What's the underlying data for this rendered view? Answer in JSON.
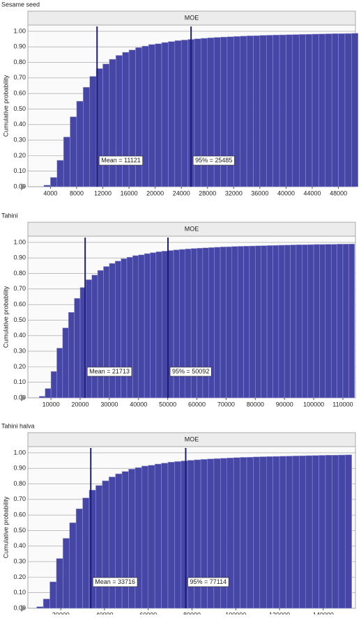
{
  "chart_data": [
    {
      "type": "histogram",
      "heading": "Sesame seed",
      "title": "MOE",
      "ylabel": "Cumulative probability",
      "color": "#4646a6",
      "line_color": "#1c1c78",
      "bins": [
        3000,
        4000,
        5000,
        6000,
        7000,
        8000,
        9000,
        10000,
        11000,
        12000,
        13000,
        14000,
        15000,
        16000,
        17000,
        18000,
        19000,
        20000,
        21000,
        22000,
        23000,
        24000,
        25000,
        26000,
        27000,
        28000,
        29000,
        30000,
        31000,
        32000,
        33000,
        34000,
        35000,
        36000,
        37000,
        38000,
        39000,
        40000,
        41000,
        42000,
        43000,
        44000,
        45000,
        46000,
        47000,
        48000,
        49000,
        50000,
        51000
      ],
      "values": [
        0.01,
        0.06,
        0.17,
        0.32,
        0.45,
        0.55,
        0.64,
        0.71,
        0.76,
        0.79,
        0.82,
        0.845,
        0.865,
        0.88,
        0.895,
        0.905,
        0.915,
        0.92,
        0.928,
        0.934,
        0.94,
        0.944,
        0.948,
        0.952,
        0.955,
        0.958,
        0.961,
        0.963,
        0.965,
        0.967,
        0.969,
        0.971,
        0.972,
        0.974,
        0.975,
        0.976,
        0.977,
        0.978,
        0.979,
        0.98,
        0.981,
        0.982,
        0.983,
        0.984,
        0.985,
        0.985,
        0.986,
        0.987
      ],
      "xlim": [
        550,
        50600
      ],
      "xticks": [
        4000,
        8000,
        12000,
        16000,
        20000,
        24000,
        28000,
        32000,
        36000,
        40000,
        44000,
        48000
      ],
      "ylim": [
        0,
        1.04
      ],
      "yticks": [
        {
          "value": 0,
          "label": "0.00"
        },
        {
          "value": 0.1,
          "label": "0.10"
        },
        {
          "value": 0.2,
          "label": "0.20"
        },
        {
          "value": 0.3,
          "label": "0.30"
        },
        {
          "value": 0.4,
          "label": "0.40"
        },
        {
          "value": 0.5,
          "label": "0.50"
        },
        {
          "value": 0.6,
          "label": "0.60"
        },
        {
          "value": 0.7,
          "label": "0.70"
        },
        {
          "value": 0.8,
          "label": "0.80"
        },
        {
          "value": 0.9,
          "label": "0.90"
        },
        {
          "value": 1,
          "label": "1.00"
        }
      ],
      "grid": true,
      "annotations": [
        {
          "x": 11121,
          "label": "Mean = 11121"
        },
        {
          "x": 25485,
          "label": "95% = 25485"
        }
      ]
    },
    {
      "type": "histogram",
      "heading": "Tahini",
      "title": "MOE",
      "ylabel": "Cumulative probability",
      "color": "#4646a6",
      "line_color": "#1c1c78",
      "bins": [
        6000,
        8000,
        10000,
        12000,
        14000,
        16000,
        18000,
        20000,
        22000,
        24000,
        26000,
        28000,
        30000,
        32000,
        34000,
        36000,
        38000,
        40000,
        42000,
        44000,
        46000,
        48000,
        50000,
        52000,
        54000,
        56000,
        58000,
        60000,
        62000,
        64000,
        66000,
        68000,
        70000,
        72000,
        74000,
        76000,
        78000,
        80000,
        82000,
        84000,
        86000,
        88000,
        90000,
        92000,
        94000,
        96000,
        98000,
        100000,
        102000,
        104000,
        106000,
        108000,
        110000,
        112000,
        114000
      ],
      "values": [
        0.01,
        0.06,
        0.17,
        0.32,
        0.45,
        0.55,
        0.64,
        0.71,
        0.76,
        0.79,
        0.82,
        0.845,
        0.865,
        0.88,
        0.895,
        0.905,
        0.915,
        0.92,
        0.928,
        0.934,
        0.94,
        0.944,
        0.948,
        0.952,
        0.955,
        0.958,
        0.961,
        0.963,
        0.965,
        0.967,
        0.969,
        0.971,
        0.972,
        0.974,
        0.975,
        0.976,
        0.977,
        0.978,
        0.979,
        0.98,
        0.981,
        0.982,
        0.983,
        0.984,
        0.985,
        0.985,
        0.986,
        0.987,
        0.987,
        0.988,
        0.988,
        0.989,
        0.989,
        0.99
      ],
      "xlim": [
        2100,
        114300
      ],
      "xticks": [
        10000,
        20000,
        30000,
        40000,
        50000,
        60000,
        70000,
        80000,
        90000,
        100000,
        110000
      ],
      "ylim": [
        0,
        1.04
      ],
      "yticks": [
        {
          "value": 0,
          "label": "0.00"
        },
        {
          "value": 0.1,
          "label": "0.10"
        },
        {
          "value": 0.2,
          "label": "0.20"
        },
        {
          "value": 0.3,
          "label": "0.30"
        },
        {
          "value": 0.4,
          "label": "0.40"
        },
        {
          "value": 0.5,
          "label": "0.50"
        },
        {
          "value": 0.6,
          "label": "0.60"
        },
        {
          "value": 0.7,
          "label": "0.70"
        },
        {
          "value": 0.8,
          "label": "0.80"
        },
        {
          "value": 0.9,
          "label": "0.90"
        },
        {
          "value": 1,
          "label": "1.00"
        }
      ],
      "grid": true,
      "annotations": [
        {
          "x": 21713,
          "label": "Mean = 21713"
        },
        {
          "x": 50092,
          "label": "95% = 50092"
        }
      ]
    },
    {
      "type": "histogram",
      "heading": "Tahini halva",
      "title": "MOE",
      "ylabel": "Cumulative probability",
      "color": "#4646a6",
      "line_color": "#1c1c78",
      "bins": [
        9000,
        12000,
        15000,
        18000,
        21000,
        24000,
        27000,
        30000,
        33000,
        36000,
        39000,
        42000,
        45000,
        48000,
        51000,
        54000,
        57000,
        60000,
        63000,
        66000,
        69000,
        72000,
        75000,
        78000,
        81000,
        84000,
        87000,
        90000,
        93000,
        96000,
        99000,
        102000,
        105000,
        108000,
        111000,
        114000,
        117000,
        120000,
        123000,
        126000,
        129000,
        132000,
        135000,
        138000,
        141000,
        144000,
        147000,
        150000,
        153000
      ],
      "values": [
        0.01,
        0.06,
        0.17,
        0.32,
        0.45,
        0.55,
        0.64,
        0.71,
        0.76,
        0.79,
        0.82,
        0.845,
        0.865,
        0.88,
        0.895,
        0.905,
        0.915,
        0.92,
        0.928,
        0.934,
        0.94,
        0.944,
        0.948,
        0.952,
        0.955,
        0.958,
        0.961,
        0.963,
        0.965,
        0.967,
        0.969,
        0.971,
        0.972,
        0.974,
        0.975,
        0.976,
        0.977,
        0.978,
        0.979,
        0.98,
        0.981,
        0.982,
        0.983,
        0.984,
        0.985,
        0.985,
        0.986,
        0.987
      ],
      "xlim": [
        4960,
        154700
      ],
      "xticks": [
        20000,
        40000,
        60000,
        80000,
        100000,
        120000,
        140000
      ],
      "ylim": [
        0,
        1.04
      ],
      "yticks": [
        {
          "value": 0,
          "label": "0.00"
        },
        {
          "value": 0.1,
          "label": "0.10"
        },
        {
          "value": 0.2,
          "label": "0.20"
        },
        {
          "value": 0.3,
          "label": "0.30"
        },
        {
          "value": 0.4,
          "label": "0.40"
        },
        {
          "value": 0.5,
          "label": "0.50"
        },
        {
          "value": 0.6,
          "label": "0.60"
        },
        {
          "value": 0.7,
          "label": "0.70"
        },
        {
          "value": 0.8,
          "label": "0.80"
        },
        {
          "value": 0.9,
          "label": "0.90"
        },
        {
          "value": 1,
          "label": "1.00"
        }
      ],
      "grid": true,
      "annotations": [
        {
          "x": 33716,
          "label": "Mean = 33716"
        },
        {
          "x": 77114,
          "label": "95% = 77114"
        }
      ]
    }
  ]
}
